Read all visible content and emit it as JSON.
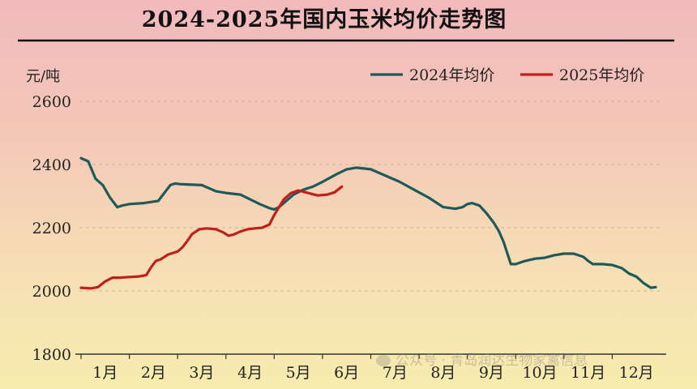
{
  "chart_data": {
    "type": "line",
    "title": "2024-2025年国内玉米均价走势图",
    "ylabel": "元/吨",
    "xlabel": "",
    "ylim": [
      1800,
      2600
    ],
    "yticks": [
      "1800",
      "2000",
      "2200",
      "2400",
      "2600"
    ],
    "xlim": [
      1,
      13
    ],
    "categories": [
      "1月",
      "2月",
      "3月",
      "4月",
      "5月",
      "6月",
      "7月",
      "8月",
      "9月",
      "10月",
      "11月",
      "12月"
    ],
    "grid": true,
    "legend_position": "top-right",
    "series": [
      {
        "name": "2024年均价",
        "color": "#1f5a5a",
        "x": [
          1.0,
          1.15,
          1.3,
          1.45,
          1.6,
          1.75,
          1.85,
          2.0,
          2.3,
          2.6,
          2.85,
          2.95,
          3.05,
          3.2,
          3.5,
          3.8,
          4.0,
          4.3,
          4.5,
          4.7,
          4.9,
          5.0,
          5.1,
          5.25,
          5.4,
          5.6,
          5.8,
          6.0,
          6.3,
          6.5,
          6.7,
          7.0,
          7.3,
          7.6,
          7.9,
          8.2,
          8.5,
          8.75,
          8.9,
          9.0,
          9.1,
          9.25,
          9.4,
          9.55,
          9.65,
          9.75,
          9.9,
          10.0,
          10.1,
          10.2,
          10.4,
          10.6,
          10.8,
          11.0,
          11.2,
          11.4,
          11.5,
          11.6,
          11.8,
          12.0,
          12.2,
          12.35,
          12.5,
          12.65,
          12.8,
          12.9
        ],
        "values": [
          2420,
          2410,
          2355,
          2335,
          2295,
          2265,
          2270,
          2275,
          2278,
          2285,
          2335,
          2340,
          2338,
          2337,
          2335,
          2315,
          2310,
          2305,
          2290,
          2275,
          2262,
          2258,
          2265,
          2285,
          2305,
          2320,
          2330,
          2345,
          2370,
          2385,
          2390,
          2385,
          2365,
          2345,
          2320,
          2295,
          2265,
          2260,
          2265,
          2275,
          2278,
          2270,
          2245,
          2215,
          2190,
          2155,
          2085,
          2085,
          2090,
          2095,
          2102,
          2105,
          2113,
          2118,
          2118,
          2108,
          2095,
          2085,
          2085,
          2082,
          2072,
          2055,
          2045,
          2025,
          2010,
          2012
        ]
      },
      {
        "name": "2025年均价",
        "color": "#c0201c",
        "x": [
          1.0,
          1.2,
          1.35,
          1.5,
          1.65,
          1.8,
          2.0,
          2.2,
          2.35,
          2.45,
          2.55,
          2.65,
          2.8,
          3.0,
          3.1,
          3.2,
          3.3,
          3.45,
          3.6,
          3.8,
          3.95,
          4.05,
          4.15,
          4.3,
          4.45,
          4.6,
          4.75,
          4.9,
          5.0,
          5.1,
          5.2,
          5.35,
          5.5,
          5.7,
          5.9,
          6.1,
          6.25,
          6.4
        ],
        "values": [
          2010,
          2008,
          2012,
          2030,
          2042,
          2042,
          2044,
          2046,
          2050,
          2075,
          2095,
          2100,
          2115,
          2125,
          2138,
          2158,
          2180,
          2195,
          2198,
          2195,
          2185,
          2175,
          2178,
          2188,
          2195,
          2198,
          2200,
          2210,
          2240,
          2265,
          2290,
          2310,
          2318,
          2310,
          2302,
          2305,
          2312,
          2330
        ]
      }
    ]
  },
  "watermark": {
    "text": "公众号 · 青岛润达生物家禽信息"
  }
}
